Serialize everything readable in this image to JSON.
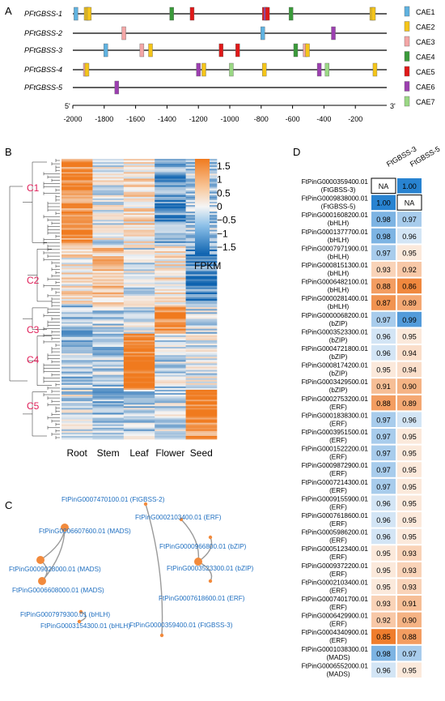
{
  "panels": {
    "a": "A",
    "b": "B",
    "c": "C",
    "d": "D"
  },
  "promoters": {
    "genes": [
      "PFtGBSS-1",
      "PFtGBSS-2",
      "PFtGBSS-3",
      "PFtGBSS-4",
      "PFtGBSS-5"
    ],
    "axis_start_label": "5'",
    "axis_end_label": "3'",
    "ticks": [
      "-2000",
      "-1800",
      "-1600",
      "-1400",
      "-1200",
      "-1000",
      "-800",
      "-600",
      "-400",
      "-200"
    ],
    "legend": [
      {
        "name": "CAE1",
        "color": "#5fb2e0"
      },
      {
        "name": "CAE2",
        "color": "#f5c518"
      },
      {
        "name": "CAE3",
        "color": "#f4a6a6"
      },
      {
        "name": "CAE4",
        "color": "#3a9a3a"
      },
      {
        "name": "CAE5",
        "color": "#e01818"
      },
      {
        "name": "CAE6",
        "color": "#9c3fb0"
      },
      {
        "name": "CAE7",
        "color": "#9ad884"
      }
    ],
    "elements": [
      [
        [
          -1980,
          1
        ],
        [
          -1915,
          2
        ],
        [
          -1905,
          2
        ],
        [
          -1895,
          2
        ],
        [
          -1370,
          4
        ],
        [
          -1240,
          5
        ],
        [
          -780,
          5
        ],
        [
          -770,
          6
        ],
        [
          -760,
          5
        ],
        [
          -610,
          4
        ],
        [
          -95,
          2
        ],
        [
          -85,
          2
        ]
      ],
      [
        [
          -1675,
          3
        ],
        [
          -790,
          1
        ],
        [
          -340,
          6
        ]
      ],
      [
        [
          -1790,
          1
        ],
        [
          -1560,
          3
        ],
        [
          -1505,
          2
        ],
        [
          -1055,
          5
        ],
        [
          -950,
          5
        ],
        [
          -580,
          4
        ],
        [
          -520,
          3
        ],
        [
          -505,
          2
        ]
      ],
      [
        [
          -1920,
          3
        ],
        [
          -1910,
          2
        ],
        [
          -1200,
          6
        ],
        [
          -1165,
          2
        ],
        [
          -990,
          7
        ],
        [
          -780,
          2
        ],
        [
          -430,
          6
        ],
        [
          -380,
          7
        ],
        [
          -75,
          2
        ]
      ],
      [
        [
          -1720,
          6
        ]
      ]
    ]
  },
  "heatmap": {
    "columns": [
      "Root",
      "Stem",
      "Leaf",
      "Flower",
      "Seed"
    ],
    "clusters": [
      "C1",
      "C2",
      "C3",
      "C4",
      "C5"
    ],
    "colorbar": {
      "title": "FPKM",
      "ticks": [
        "1.5",
        "1",
        "0.5",
        "0",
        "−0.5",
        "−1",
        "−1.5"
      ]
    }
  },
  "network": {
    "nodes": [
      {
        "label": "FtPinG0007470100.01 (FtGBSS-2)",
        "size": "small"
      },
      {
        "label": "FtPinG0002103400.01 (ERF)",
        "size": "small"
      },
      {
        "label": "FtPinG0006607600.01 (MADS)",
        "size": "large"
      },
      {
        "label": "FtPinG0000966800.01 (bZIP)",
        "size": "small"
      },
      {
        "label": "FtPinG0009028000.01 (MADS)",
        "size": "large"
      },
      {
        "label": "FtPinG0003523300.01 (bZIP)",
        "size": "large"
      },
      {
        "label": "FtPinG0006608000.01 (MADS)",
        "size": "large"
      },
      {
        "label": "FtPinG0007618600.01 (ERF)",
        "size": "small"
      },
      {
        "label": "FtPinG0007979300.01 (bHLH)",
        "size": "small"
      },
      {
        "label": "FtPinG0000359400.01 (FtGBSS-3)",
        "size": "small"
      },
      {
        "label": "FtPinG0003154300.01 (bHLH)",
        "size": "small"
      }
    ]
  },
  "correlation": {
    "columns": [
      "FtGBSS-3",
      "FtGBSS-5"
    ],
    "rows": [
      {
        "id": "FtPinG0000359400.01",
        "family": "(FtGBSS-3)",
        "v3": "NA",
        "v5": "1.00"
      },
      {
        "id": "FtPinG0009838000.01",
        "family": "(FtGBSS-5)",
        "v3": "1.00",
        "v5": "NA"
      },
      {
        "id": "FtPinG0001608200.01",
        "family": "(bHLH)",
        "v3": "0.98",
        "v5": "0.97"
      },
      {
        "id": "FtPinG0001377700.01",
        "family": "(bHLH)",
        "v3": "0.98",
        "v5": "0.96"
      },
      {
        "id": "FtPinG0007971900.01",
        "family": "(bHLH)",
        "v3": "0.97",
        "v5": "0.95"
      },
      {
        "id": "FtPinG0008151300.01",
        "family": "(bHLH)",
        "v3": "0.93",
        "v5": "0.92"
      },
      {
        "id": "FtPinG0006482100.01",
        "family": "(bHLH)",
        "v3": "0.88",
        "v5": "0.86"
      },
      {
        "id": "FtPinG0000281400.01",
        "family": "(bHLH)",
        "v3": "0.87",
        "v5": "0.89"
      },
      {
        "id": "FtPinG0000068200.01",
        "family": "(bZIP)",
        "v3": "0.97",
        "v5": "0.99"
      },
      {
        "id": "FtPinG0003523300.01",
        "family": "(bZIP)",
        "v3": "0.96",
        "v5": "0.95"
      },
      {
        "id": "FtPinG0004721800.01",
        "family": "(bZIP)",
        "v3": "0.96",
        "v5": "0.94"
      },
      {
        "id": "FtPinG0008174200.01",
        "family": "(bZIP)",
        "v3": "0.95",
        "v5": "0.94"
      },
      {
        "id": "FtPinG0003429500.01",
        "family": "(bZIP)",
        "v3": "0.91",
        "v5": "0.90"
      },
      {
        "id": "FtPinG0002753200.01",
        "family": "(ERF)",
        "v3": "0.88",
        "v5": "0.89"
      },
      {
        "id": "FtPinG0001838300.01",
        "family": "(ERF)",
        "v3": "0.97",
        "v5": "0.96"
      },
      {
        "id": "FtPinG0003951500.01",
        "family": "(ERF)",
        "v3": "0.97",
        "v5": "0.95"
      },
      {
        "id": "FtPinG0001522200.01",
        "family": "(ERF)",
        "v3": "0.97",
        "v5": "0.95"
      },
      {
        "id": "FtPinG0009872900.01",
        "family": "(ERF)",
        "v3": "0.97",
        "v5": "0.95"
      },
      {
        "id": "FtPinG0007214300.01",
        "family": "(ERF)",
        "v3": "0.97",
        "v5": "0.95"
      },
      {
        "id": "FtPinG0009155900.01",
        "family": "(ERF)",
        "v3": "0.96",
        "v5": "0.95"
      },
      {
        "id": "FtPinG0007618600.01",
        "family": "(ERF)",
        "v3": "0.96",
        "v5": "0.95"
      },
      {
        "id": "FtPinG0005986200.01",
        "family": "(ERF)",
        "v3": "0.96",
        "v5": "0.95"
      },
      {
        "id": "FtPinG0005123400.01",
        "family": "(ERF)",
        "v3": "0.95",
        "v5": "0.93"
      },
      {
        "id": "FtPinG0009372200.01",
        "family": "(ERF)",
        "v3": "0.95",
        "v5": "0.93"
      },
      {
        "id": "FtPinG0002103400.01",
        "family": "(ERF)",
        "v3": "0.95",
        "v5": "0.93"
      },
      {
        "id": "FtPinG0007401700.01",
        "family": "(ERF)",
        "v3": "0.93",
        "v5": "0.91"
      },
      {
        "id": "FtPinG0006429900.01",
        "family": "(ERF)",
        "v3": "0.92",
        "v5": "0.90"
      },
      {
        "id": "FtPinG0004340900.01",
        "family": "(ERF)",
        "v3": "0.85",
        "v5": "0.88"
      },
      {
        "id": "FtPinG0001038300.01",
        "family": "(MADS)",
        "v3": "0.98",
        "v5": "0.97"
      },
      {
        "id": "FtPinG0006552000.01",
        "family": "(MADS)",
        "v3": "0.96",
        "v5": "0.95"
      }
    ]
  },
  "colors": {
    "accent_orange": "#f28a3c",
    "accent_blue": "#1f78c8",
    "network_label": "#1f6fc0",
    "cluster_label": "#e0205a"
  }
}
